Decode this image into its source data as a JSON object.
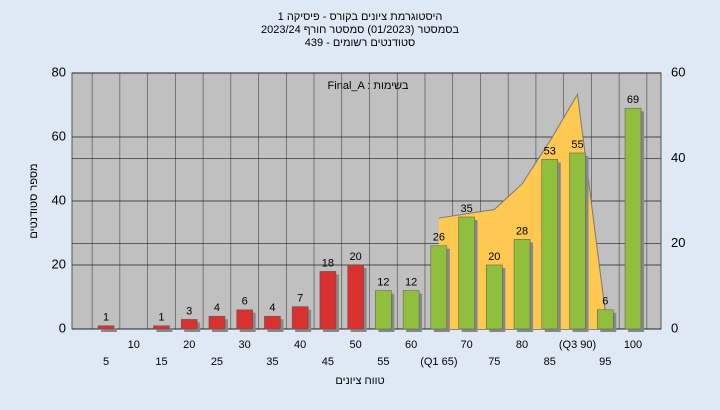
{
  "chart_data": {
    "type": "bar",
    "title": [
      "היסטוגרמת ציונים בקורס - פיסיקה 1",
      "בסמסטר (01/2023) סמסטר חורף 2023/24",
      "סטודנטים רשומים - 439"
    ],
    "annotation": "Final_A : בשימות",
    "y_label": "מספר סטודנטים",
    "x_label": "טווח ציונים",
    "categories": [
      "5",
      "10",
      "15",
      "20",
      "25",
      "30",
      "35",
      "40",
      "45",
      "50",
      "55",
      "60",
      "(Q1 65)",
      "70",
      "75",
      "80",
      "85",
      "(Q3 90)",
      "95",
      "100"
    ],
    "values": [
      1,
      0,
      1,
      3,
      4,
      6,
      4,
      7,
      18,
      20,
      12,
      12,
      26,
      35,
      20,
      28,
      53,
      55,
      6,
      69
    ],
    "colors": [
      "#d93030",
      "#d93030",
      "#d93030",
      "#d93030",
      "#d93030",
      "#d93030",
      "#d93030",
      "#d93030",
      "#d93030",
      "#d93030",
      "#8fbf3c",
      "#8fbf3c",
      "#8fbf3c",
      "#8fbf3c",
      "#8fbf3c",
      "#8fbf3c",
      "#8fbf3c",
      "#8fbf3c",
      "#8fbf3c",
      "#8fbf3c"
    ],
    "series": [
      {
        "values": [
          null,
          null,
          null,
          null,
          null,
          null,
          null,
          null,
          null,
          null,
          null,
          null,
          26,
          27,
          28,
          34,
          44,
          55,
          4,
          null
        ],
        "color": "#ffc850",
        "axis": "y2"
      }
    ],
    "ylim": [
      0,
      80
    ],
    "yticks": [
      0,
      20,
      40,
      60,
      80
    ],
    "y2lim": [
      0,
      60
    ],
    "y2ticks": [
      0,
      20,
      40,
      60
    ],
    "grid": true
  }
}
